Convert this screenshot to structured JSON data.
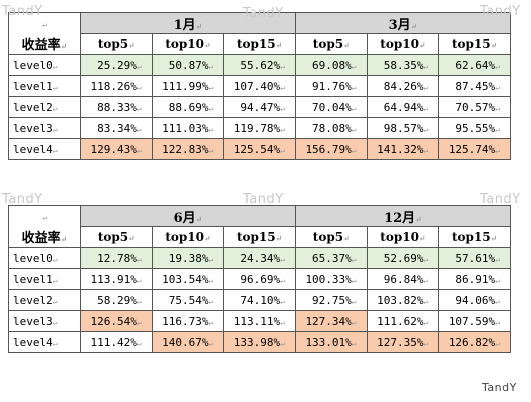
{
  "watermark": "TandY",
  "return_mark": "↵",
  "tables": [
    {
      "rowheader": "收益率",
      "groups": [
        {
          "month": "1月",
          "cols": [
            "top5",
            "top10",
            "top15"
          ]
        },
        {
          "month": "3月",
          "cols": [
            "top5",
            "top10",
            "top15"
          ]
        }
      ],
      "rows": [
        {
          "level": "level0",
          "values": [
            "25.29%",
            "50.87%",
            "55.62%",
            "69.08%",
            "58.35%",
            "62.64%"
          ]
        },
        {
          "level": "level1",
          "values": [
            "118.26%",
            "111.99%",
            "107.40%",
            "91.76%",
            "84.26%",
            "87.45%"
          ]
        },
        {
          "level": "level2",
          "values": [
            "88.33%",
            "88.69%",
            "94.47%",
            "70.04%",
            "64.94%",
            "70.57%"
          ]
        },
        {
          "level": "level3",
          "values": [
            "83.34%",
            "111.03%",
            "119.78%",
            "78.08%",
            "98.57%",
            "95.55%"
          ]
        },
        {
          "level": "level4",
          "values": [
            "129.43%",
            "122.83%",
            "125.54%",
            "156.79%",
            "141.32%",
            "125.74%"
          ]
        }
      ]
    },
    {
      "rowheader": "收益率",
      "groups": [
        {
          "month": "6月",
          "cols": [
            "top5",
            "top10",
            "top15"
          ]
        },
        {
          "month": "12月",
          "cols": [
            "top5",
            "top10",
            "top15"
          ]
        }
      ],
      "rows": [
        {
          "level": "level0",
          "values": [
            "12.78%",
            "19.38%",
            "24.34%",
            "65.37%",
            "52.69%",
            "57.61%"
          ]
        },
        {
          "level": "level1",
          "values": [
            "113.91%",
            "103.54%",
            "96.69%",
            "100.33%",
            "96.84%",
            "86.91%"
          ]
        },
        {
          "level": "level2",
          "values": [
            "58.29%",
            "75.54%",
            "74.10%",
            "92.75%",
            "103.82%",
            "94.06%"
          ]
        },
        {
          "level": "level3",
          "values": [
            "126.54%",
            "116.73%",
            "113.11%",
            "127.34%",
            "111.62%",
            "107.59%"
          ]
        },
        {
          "level": "level4",
          "values": [
            "111.42%",
            "140.67%",
            "133.98%",
            "133.01%",
            "127.35%",
            "126.82%"
          ]
        }
      ]
    }
  ],
  "highlight_colors": {
    "green": "#e2efda",
    "orange": "#f8cbad",
    "header_gray": "#d6d6d6"
  }
}
